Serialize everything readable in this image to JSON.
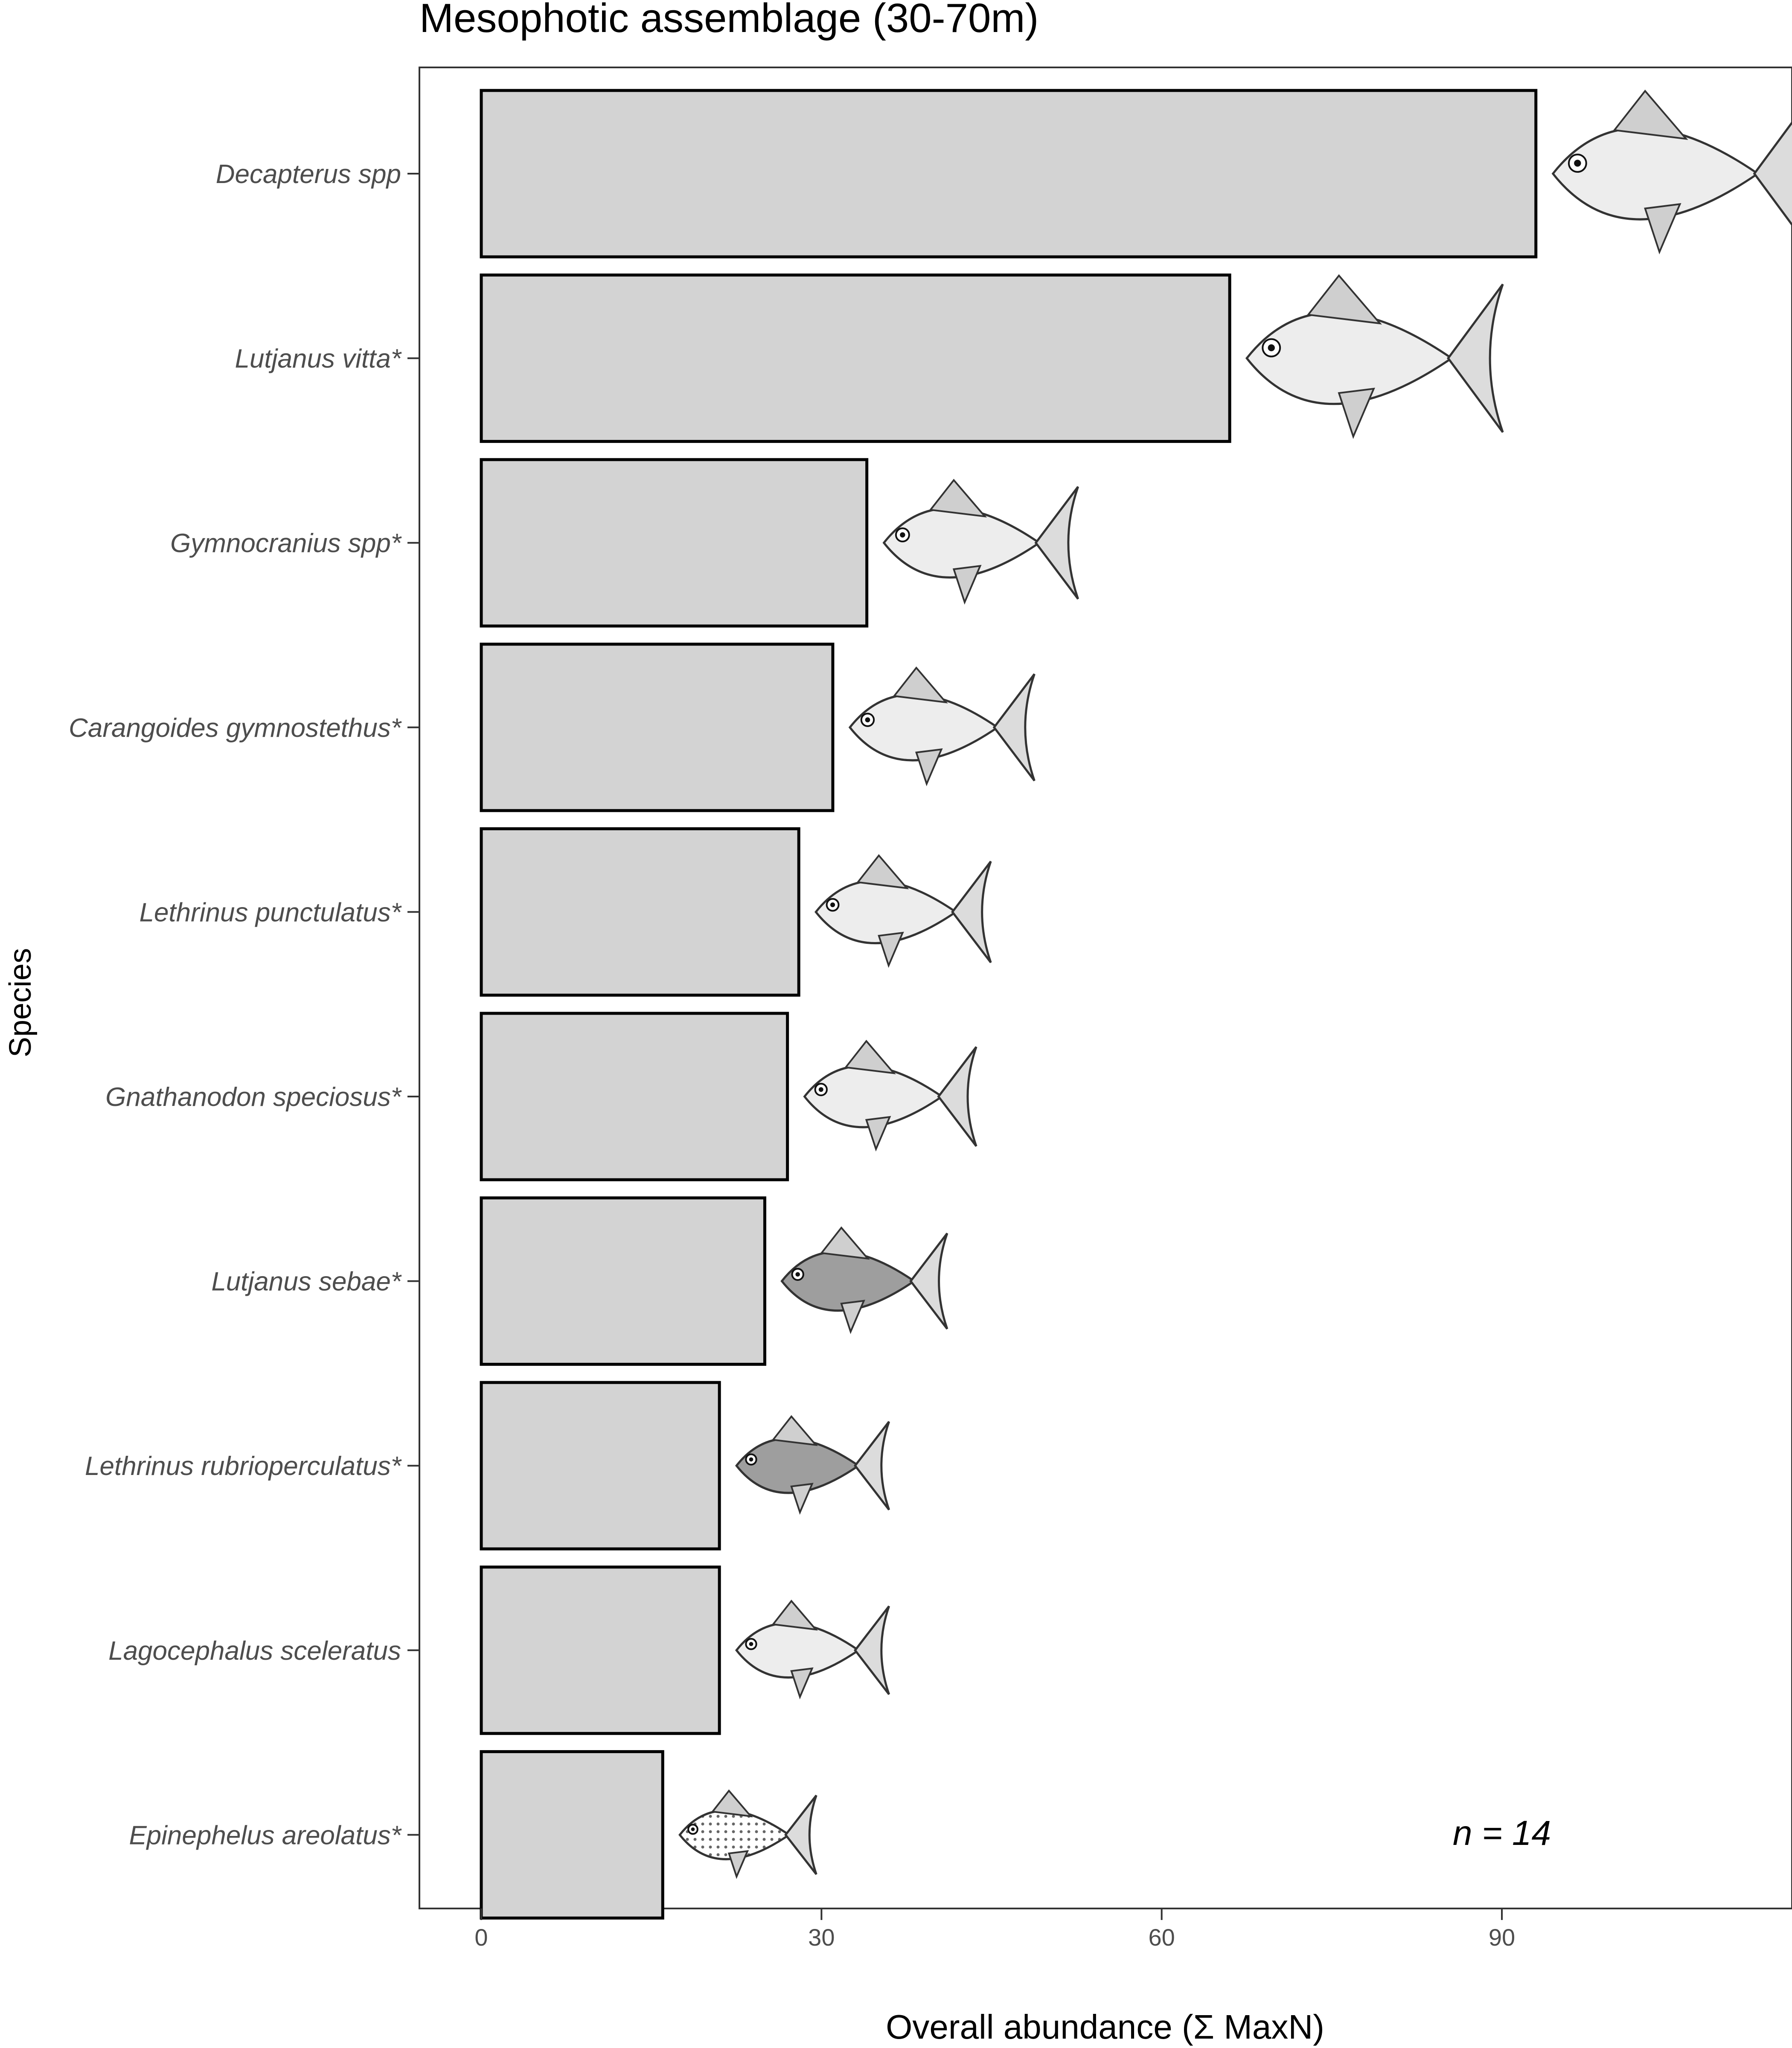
{
  "chart_data": {
    "type": "bar",
    "orientation": "horizontal",
    "title": "Mesophotic assemblage (30-70m)",
    "xlabel": "Overall abundance (Σ MaxN)",
    "ylabel": "Species",
    "xlim": [
      0,
      110
    ],
    "xticks": [
      0,
      30,
      60,
      90
    ],
    "grid": false,
    "categories": [
      "Decapterus spp",
      "Lutjanus vitta*",
      "Gymnocranius spp*",
      "Carangoides gymnostethus*",
      "Lethrinus punctulatus*",
      "Gnathanodon speciosus*",
      "Lutjanus sebae*",
      "Lethrinus rubrioperculatus*",
      "Lagocephalus sceleratus",
      "Epinephelus areolatus*"
    ],
    "values": [
      93,
      66,
      34,
      31,
      28,
      27,
      25,
      21,
      21,
      16
    ],
    "annotation": "n = 14",
    "bar_fill": "#d3d3d3",
    "bar_stroke": "#000000"
  }
}
